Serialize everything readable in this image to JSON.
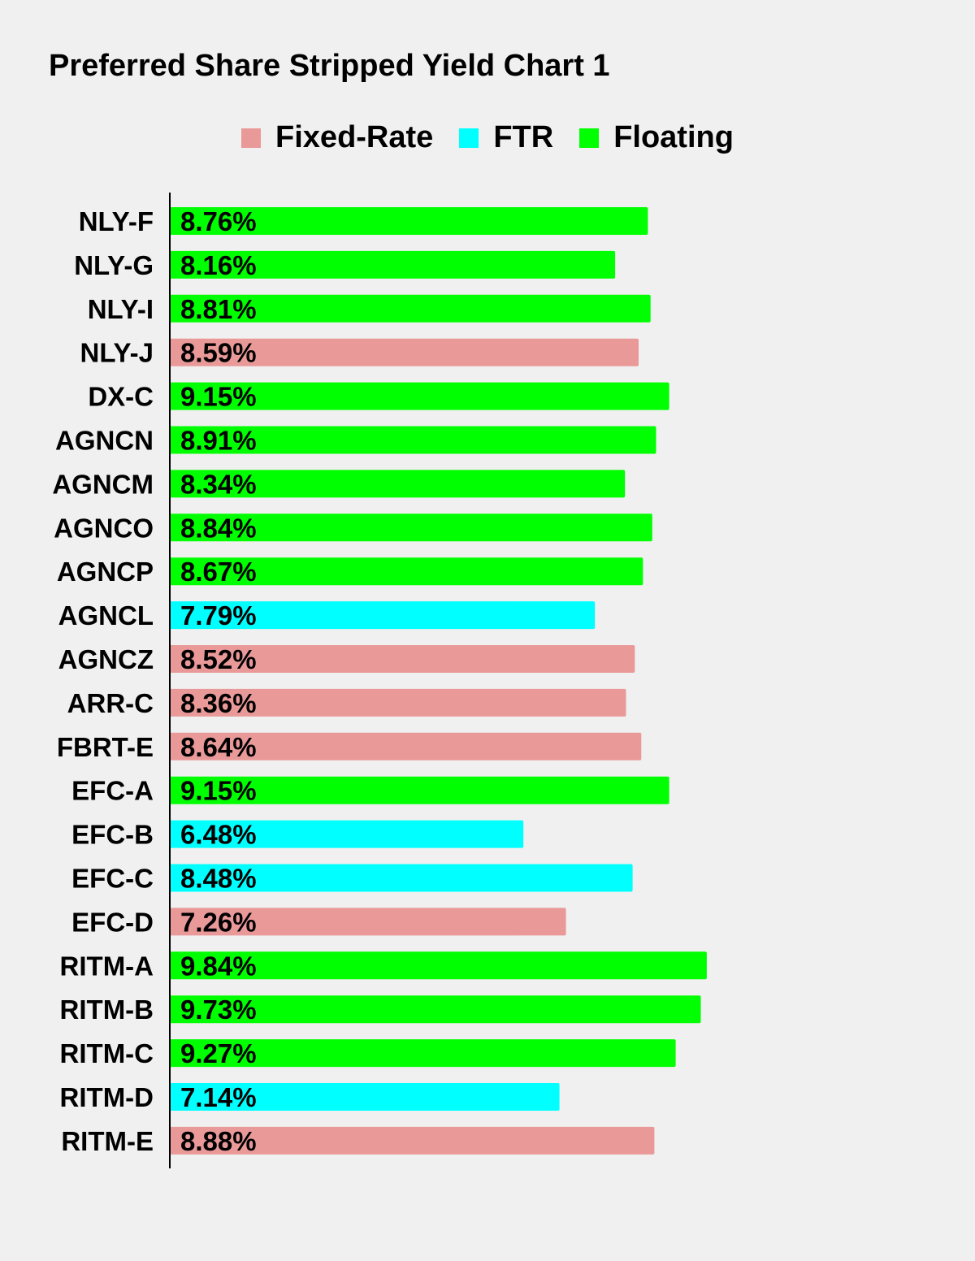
{
  "chart_data": {
    "type": "bar",
    "orientation": "horizontal",
    "title": "Preferred Share Stripped Yield Chart 1",
    "xlabel": "",
    "ylabel": "",
    "xlim": [
      0,
      12
    ],
    "grid": false,
    "legend": {
      "placement": "top-center",
      "entries": [
        {
          "name": "Fixed-Rate",
          "color": "#ea9999"
        },
        {
          "name": "FTR",
          "color": "#00ffff"
        },
        {
          "name": "Floating",
          "color": "#00ff00"
        }
      ]
    },
    "categories": [
      "NLY-F",
      "NLY-G",
      "NLY-I",
      "NLY-J",
      "DX-C",
      "AGNCN",
      "AGNCM",
      "AGNCO",
      "AGNCP",
      "AGNCL",
      "AGNCZ",
      "ARR-C",
      "FBRT-E",
      "EFC-A",
      "EFC-B",
      "EFC-C",
      "EFC-D",
      "RITM-A",
      "RITM-B",
      "RITM-C",
      "RITM-D",
      "RITM-E"
    ],
    "values": [
      8.76,
      8.16,
      8.81,
      8.59,
      9.15,
      8.91,
      8.34,
      8.84,
      8.67,
      7.79,
      8.52,
      8.36,
      8.64,
      9.15,
      6.48,
      8.48,
      7.26,
      9.84,
      9.73,
      9.27,
      7.14,
      8.88
    ],
    "data_labels": [
      "8.76%",
      "8.16%",
      "8.81%",
      "8.59%",
      "9.15%",
      "8.91%",
      "8.34%",
      "8.84%",
      "8.67%",
      "7.79%",
      "8.52%",
      "8.36%",
      "8.64%",
      "9.15%",
      "6.48%",
      "8.48%",
      "7.26%",
      "9.84%",
      "9.73%",
      "9.27%",
      "7.14%",
      "8.88%"
    ],
    "series_membership": [
      "Floating",
      "Floating",
      "Floating",
      "Fixed-Rate",
      "Floating",
      "Floating",
      "Floating",
      "Floating",
      "Floating",
      "FTR",
      "Fixed-Rate",
      "Fixed-Rate",
      "Fixed-Rate",
      "Floating",
      "FTR",
      "FTR",
      "Fixed-Rate",
      "Floating",
      "Floating",
      "Floating",
      "FTR",
      "Fixed-Rate"
    ]
  }
}
